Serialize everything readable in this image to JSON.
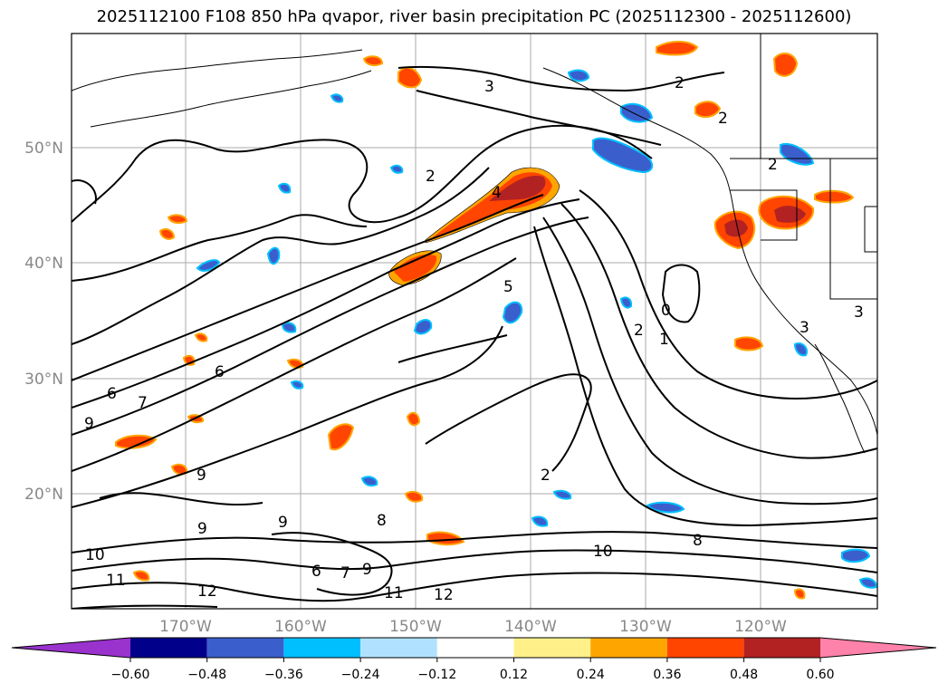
{
  "title": "2025112100 F108 850 hPa qvapor, river basin precipitation PC (2025112300 - 2025112600)",
  "lat_labels": [
    "50°N",
    "40°N",
    "30°N",
    "20°N"
  ],
  "lon_labels": [
    "170°W",
    "160°W",
    "150°W",
    "140°W",
    "130°W",
    "120°W"
  ],
  "colorbar": {
    "colors": [
      "#9a32cd",
      "#00008b",
      "#3a5fcd",
      "#00bfff",
      "#b0e2ff",
      "#ffffff",
      "#fff08a",
      "#ffa500",
      "#ff4500",
      "#b22222",
      "#ff82ab"
    ],
    "ticks": [
      "−0.60",
      "−0.48",
      "−0.36",
      "−0.24",
      "−0.12",
      "0.12",
      "0.24",
      "0.36",
      "0.48",
      "0.60"
    ]
  },
  "contour_labels": [
    "3",
    "2",
    "2",
    "2",
    "2",
    "4",
    "5",
    "2",
    "1",
    "0",
    "3",
    "3",
    "6",
    "6",
    "7",
    "9",
    "9",
    "9",
    "9",
    "8",
    "8",
    "10",
    "10",
    "11",
    "11",
    "12",
    "12",
    "6",
    "7",
    "9",
    "2"
  ]
}
